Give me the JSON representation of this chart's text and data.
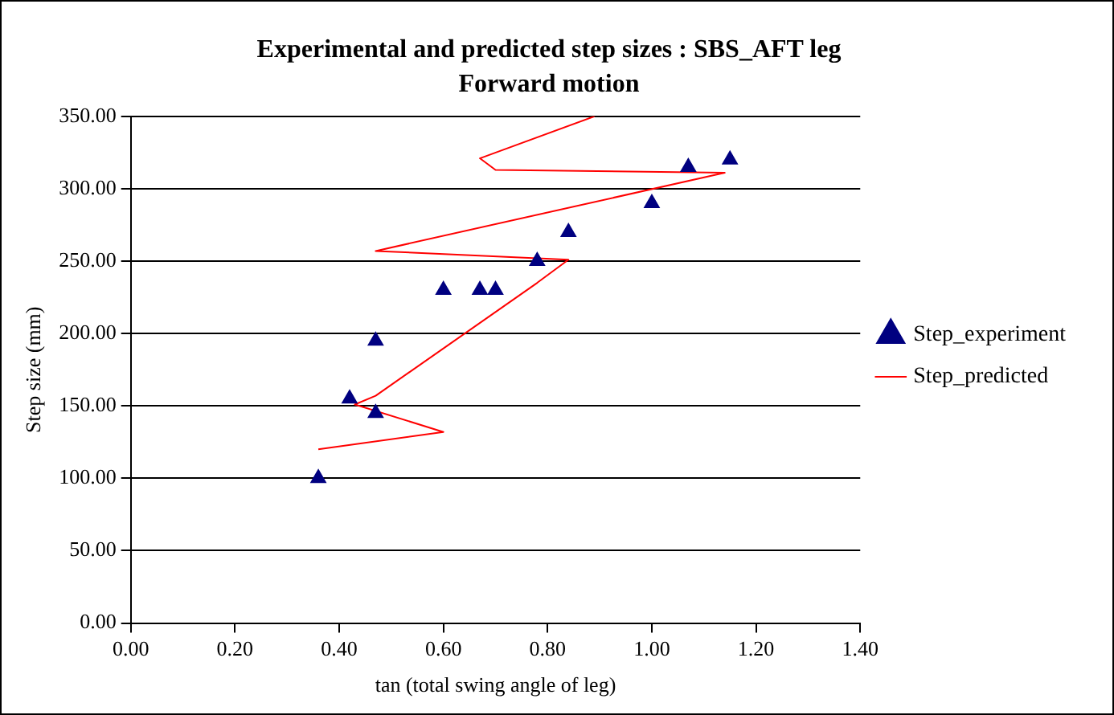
{
  "chart_data": {
    "type": "scatter",
    "title": "Experimental and predicted step sizes : SBS_AFT leg",
    "subtitle": "Forward motion",
    "xlabel": "tan (total swing angle of leg)",
    "ylabel": "Step size (mm)",
    "xlim": [
      0,
      1.4
    ],
    "xticks": [
      {
        "value": 0,
        "label": "0.00"
      },
      {
        "value": 0.2,
        "label": "0.20"
      },
      {
        "value": 0.4,
        "label": "0.40"
      },
      {
        "value": 0.6,
        "label": "0.60"
      },
      {
        "value": 0.8,
        "label": "0.80"
      },
      {
        "value": 1,
        "label": "1.00"
      },
      {
        "value": 1.2,
        "label": "1.20"
      },
      {
        "value": 1.4,
        "label": "1.40"
      }
    ],
    "ylim": [
      0,
      350
    ],
    "yticks": [
      {
        "value": 0,
        "label": "0.00"
      },
      {
        "value": 50,
        "label": "50.00"
      },
      {
        "value": 100,
        "label": "100.00"
      },
      {
        "value": 150,
        "label": "150.00"
      },
      {
        "value": 200,
        "label": "200.00"
      },
      {
        "value": 250,
        "label": "250.00"
      },
      {
        "value": 300,
        "label": "300.00"
      },
      {
        "value": 350,
        "label": "350.00"
      }
    ],
    "grid": "y",
    "legend": "right",
    "series": [
      {
        "name": "Step_experiment",
        "type": "scatter",
        "marker": "triangle",
        "color": "#000080",
        "x": [
          0.36,
          0.42,
          0.47,
          0.47,
          0.6,
          0.67,
          0.7,
          0.78,
          0.84,
          1.0,
          1.07,
          1.15
        ],
        "values": [
          100,
          155,
          145,
          195,
          230,
          230,
          230,
          250,
          270,
          290,
          315,
          320
        ]
      },
      {
        "name": "Step_predicted",
        "type": "line",
        "marker": "none",
        "color": "#ff0000",
        "x": [
          0.36,
          0.6,
          0.43,
          0.47,
          0.78,
          0.84,
          0.47,
          1.14,
          0.7,
          0.67,
          0.89
        ],
        "values": [
          120,
          132,
          151,
          157,
          235,
          251,
          257,
          311,
          313,
          321,
          350
        ]
      }
    ]
  }
}
